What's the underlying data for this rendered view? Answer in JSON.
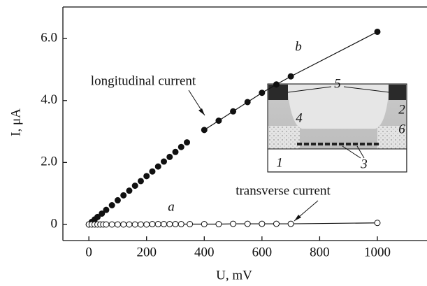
{
  "chart_data": {
    "type": "line",
    "xlabel": "U, mV",
    "ylabel": "I, μA",
    "xlim": [
      -90,
      1172
    ],
    "ylim": [
      -0.52,
      7.02
    ],
    "xticks": [
      0,
      200,
      400,
      600,
      800,
      1000
    ],
    "yticks": [
      0,
      {
        "value": 2,
        "label": "2.0"
      },
      {
        "value": 4,
        "label": "4.0"
      },
      {
        "value": 6,
        "label": "6.0"
      }
    ],
    "series": [
      {
        "name": "b",
        "color": "#111",
        "marker": "filled",
        "line": true,
        "x": [
          400,
          450,
          500,
          550,
          600,
          650,
          700,
          1000
        ],
        "values": [
          3.05,
          3.35,
          3.65,
          3.95,
          4.25,
          4.52,
          4.78,
          6.22
        ]
      },
      {
        "color": "#111",
        "marker": "filled",
        "line": false,
        "x": [
          0,
          10,
          20,
          30,
          45,
          60,
          80,
          100,
          120,
          140,
          160,
          180,
          200,
          220,
          240,
          260,
          280,
          300,
          320,
          340
        ],
        "values": [
          0,
          0.08,
          0.16,
          0.24,
          0.35,
          0.47,
          0.62,
          0.78,
          0.94,
          1.09,
          1.25,
          1.4,
          1.56,
          1.71,
          1.87,
          2.03,
          2.18,
          2.34,
          2.5,
          2.65
        ]
      },
      {
        "name": "a",
        "color": "#111",
        "marker": "open",
        "line": true,
        "x": [
          0,
          10,
          20,
          30,
          40,
          50,
          60,
          80,
          100,
          120,
          140,
          160,
          180,
          200,
          220,
          240,
          260,
          280,
          300,
          320,
          350,
          400,
          450,
          500,
          550,
          600,
          650,
          700,
          1000
        ],
        "values": [
          0,
          0,
          0,
          0,
          0,
          0,
          0,
          0,
          0,
          0,
          0,
          0,
          0,
          0,
          0.01,
          0.01,
          0.01,
          0.01,
          0.01,
          0.01,
          0.01,
          0.01,
          0.01,
          0.02,
          0.02,
          0.02,
          0.02,
          0.02,
          0.05
        ]
      }
    ],
    "annotations": [
      "longitudinal current",
      "transverse current"
    ]
  },
  "inset": {
    "labels": [
      "1",
      "2",
      "3",
      "4",
      "5",
      "6"
    ]
  }
}
